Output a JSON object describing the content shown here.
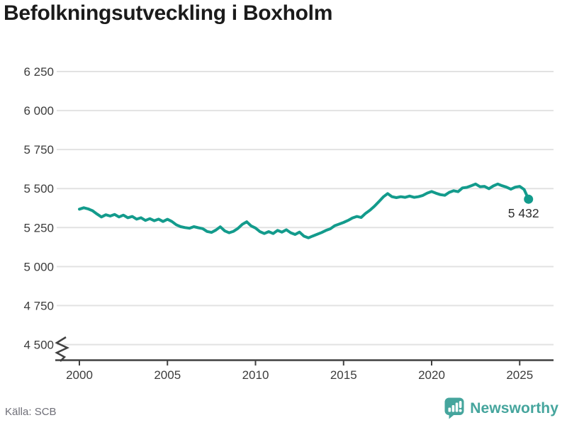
{
  "title": "Befolkningsutveckling i Boxholm",
  "footer": {
    "source": "Källa: SCB",
    "brand": "Newsworthy"
  },
  "colors": {
    "line": "#139b8c",
    "grid": "#e2e2e2",
    "axis": "#404040",
    "tick_label": "#3c3c3c",
    "title": "#1b1b1b",
    "annotation": "#2d2d2d",
    "source": "#6f6f78",
    "brand": "#45a59d"
  },
  "chart_data": {
    "type": "line",
    "title": "Befolkningsutveckling i Boxholm",
    "x": [
      2000.0,
      2000.25,
      2000.5,
      2000.75,
      2001.0,
      2001.25,
      2001.5,
      2001.75,
      2002.0,
      2002.25,
      2002.5,
      2002.75,
      2003.0,
      2003.25,
      2003.5,
      2003.75,
      2004.0,
      2004.25,
      2004.5,
      2004.75,
      2005.0,
      2005.25,
      2005.5,
      2005.75,
      2006.0,
      2006.25,
      2006.5,
      2006.75,
      2007.0,
      2007.25,
      2007.5,
      2007.75,
      2008.0,
      2008.25,
      2008.5,
      2008.75,
      2009.0,
      2009.25,
      2009.5,
      2009.75,
      2010.0,
      2010.25,
      2010.5,
      2010.75,
      2011.0,
      2011.25,
      2011.5,
      2011.75,
      2012.0,
      2012.25,
      2012.5,
      2012.75,
      2013.0,
      2013.25,
      2013.5,
      2013.75,
      2014.0,
      2014.25,
      2014.5,
      2014.75,
      2015.0,
      2015.25,
      2015.5,
      2015.75,
      2016.0,
      2016.25,
      2016.5,
      2016.75,
      2017.0,
      2017.25,
      2017.5,
      2017.75,
      2018.0,
      2018.25,
      2018.5,
      2018.75,
      2019.0,
      2019.25,
      2019.5,
      2019.75,
      2020.0,
      2020.25,
      2020.5,
      2020.75,
      2021.0,
      2021.25,
      2021.5,
      2021.75,
      2022.0,
      2022.25,
      2022.5,
      2022.75,
      2023.0,
      2023.25,
      2023.5,
      2023.75,
      2024.0,
      2024.25,
      2024.5,
      2024.75,
      2025.0,
      2025.25,
      2025.5
    ],
    "values": [
      5368,
      5377,
      5370,
      5358,
      5337,
      5318,
      5332,
      5324,
      5334,
      5318,
      5330,
      5313,
      5321,
      5304,
      5313,
      5296,
      5307,
      5294,
      5304,
      5289,
      5303,
      5289,
      5268,
      5256,
      5250,
      5246,
      5256,
      5249,
      5243,
      5225,
      5219,
      5234,
      5255,
      5229,
      5217,
      5226,
      5244,
      5271,
      5287,
      5261,
      5247,
      5224,
      5212,
      5224,
      5212,
      5232,
      5221,
      5236,
      5217,
      5206,
      5221,
      5195,
      5184,
      5196,
      5207,
      5218,
      5232,
      5242,
      5262,
      5272,
      5283,
      5296,
      5311,
      5321,
      5315,
      5341,
      5361,
      5386,
      5416,
      5446,
      5468,
      5448,
      5442,
      5448,
      5444,
      5452,
      5444,
      5448,
      5456,
      5471,
      5481,
      5470,
      5461,
      5457,
      5476,
      5486,
      5480,
      5504,
      5508,
      5518,
      5529,
      5512,
      5514,
      5499,
      5517,
      5529,
      5518,
      5509,
      5496,
      5509,
      5514,
      5494,
      5432
    ],
    "xticks": [
      2000,
      2005,
      2010,
      2015,
      2020,
      2025
    ],
    "yticks": [
      4500,
      4750,
      5000,
      5250,
      5500,
      5750,
      6000,
      6250
    ],
    "ytick_labels": [
      "4 500",
      "4 750",
      "5 000",
      "5 250",
      "5 500",
      "5 750",
      "6 000",
      "6 250"
    ],
    "xlim": [
      1998.6,
      2026.9
    ],
    "ylim": [
      4500,
      6250
    ],
    "grid": "horizontal",
    "legend": "none",
    "axis_break_at_bottom": true,
    "end_point": {
      "x": 2025.5,
      "y": 5432,
      "label": "5 432"
    },
    "source": "Källa: SCB"
  }
}
